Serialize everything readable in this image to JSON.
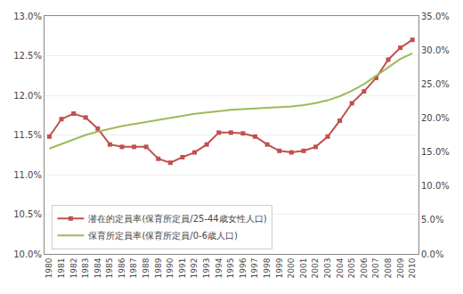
{
  "chart_data": {
    "type": "line",
    "x": [
      1980,
      1981,
      1982,
      1983,
      1984,
      1985,
      1986,
      1987,
      1988,
      1989,
      1990,
      1991,
      1992,
      1993,
      1994,
      1995,
      1996,
      1997,
      1998,
      1999,
      2000,
      2001,
      2002,
      2003,
      2004,
      2005,
      2006,
      2007,
      2008,
      2009,
      2010
    ],
    "series": [
      {
        "name": "潜在的定員率(保育所定員/25-44歳女性人口)",
        "color": "#C0504D",
        "marker": "square",
        "line_style": "solid",
        "values": [
          11.48,
          11.7,
          11.77,
          11.72,
          11.58,
          11.38,
          11.35,
          11.35,
          11.35,
          11.2,
          11.15,
          11.22,
          11.28,
          11.38,
          11.53,
          11.53,
          11.52,
          11.48,
          11.38,
          11.3,
          11.28,
          11.3,
          11.35,
          11.48,
          11.68,
          11.9,
          12.05,
          12.22,
          12.45,
          12.6,
          12.7
        ]
      },
      {
        "name": "保育所定員率(保育所定員/0-6歳人口)",
        "color": "#9BBB59",
        "marker": "none",
        "line_style": "solid",
        "axis": "y2",
        "values": [
          15.5,
          16.2,
          16.9,
          17.5,
          18.0,
          18.4,
          18.8,
          19.1,
          19.4,
          19.7,
          20.0,
          20.3,
          20.6,
          20.8,
          21.0,
          21.2,
          21.3,
          21.4,
          21.5,
          21.6,
          21.7,
          21.9,
          22.2,
          22.6,
          23.2,
          24.0,
          25.0,
          26.2,
          27.5,
          28.7,
          29.5
        ]
      }
    ],
    "xlim": [
      1979.6,
      2010.5
    ],
    "xticks": [
      1980,
      1981,
      1982,
      1983,
      1984,
      1985,
      1986,
      1987,
      1988,
      1989,
      1990,
      1991,
      1992,
      1993,
      1994,
      1995,
      1996,
      1997,
      1998,
      1999,
      2000,
      2001,
      2002,
      2003,
      2004,
      2005,
      2006,
      2007,
      2008,
      2009,
      2010
    ],
    "ylim": [
      10.0,
      13.0
    ],
    "yticks": [
      {
        "value": 10.0,
        "label": "10.0%"
      },
      {
        "value": 10.5,
        "label": "10.5%"
      },
      {
        "value": 11.0,
        "label": "11.0%"
      },
      {
        "value": 11.5,
        "label": "11.5%"
      },
      {
        "value": 12.0,
        "label": "12.0%"
      },
      {
        "value": 12.5,
        "label": "12.5%"
      },
      {
        "value": 13.0,
        "label": "13.0%"
      }
    ],
    "y2lim": [
      0.0,
      35.0
    ],
    "y2ticks": [
      {
        "value": 0.0,
        "label": "0.0%"
      },
      {
        "value": 5.0,
        "label": "5.0%"
      },
      {
        "value": 10.0,
        "label": "10.0%"
      },
      {
        "value": 15.0,
        "label": "15.0%"
      },
      {
        "value": 20.0,
        "label": "20.0%"
      },
      {
        "value": 25.0,
        "label": "25.0%"
      },
      {
        "value": 30.0,
        "label": "30.0%"
      },
      {
        "value": 35.0,
        "label": "35.0%"
      }
    ],
    "grid": true,
    "legend": "lower left"
  }
}
